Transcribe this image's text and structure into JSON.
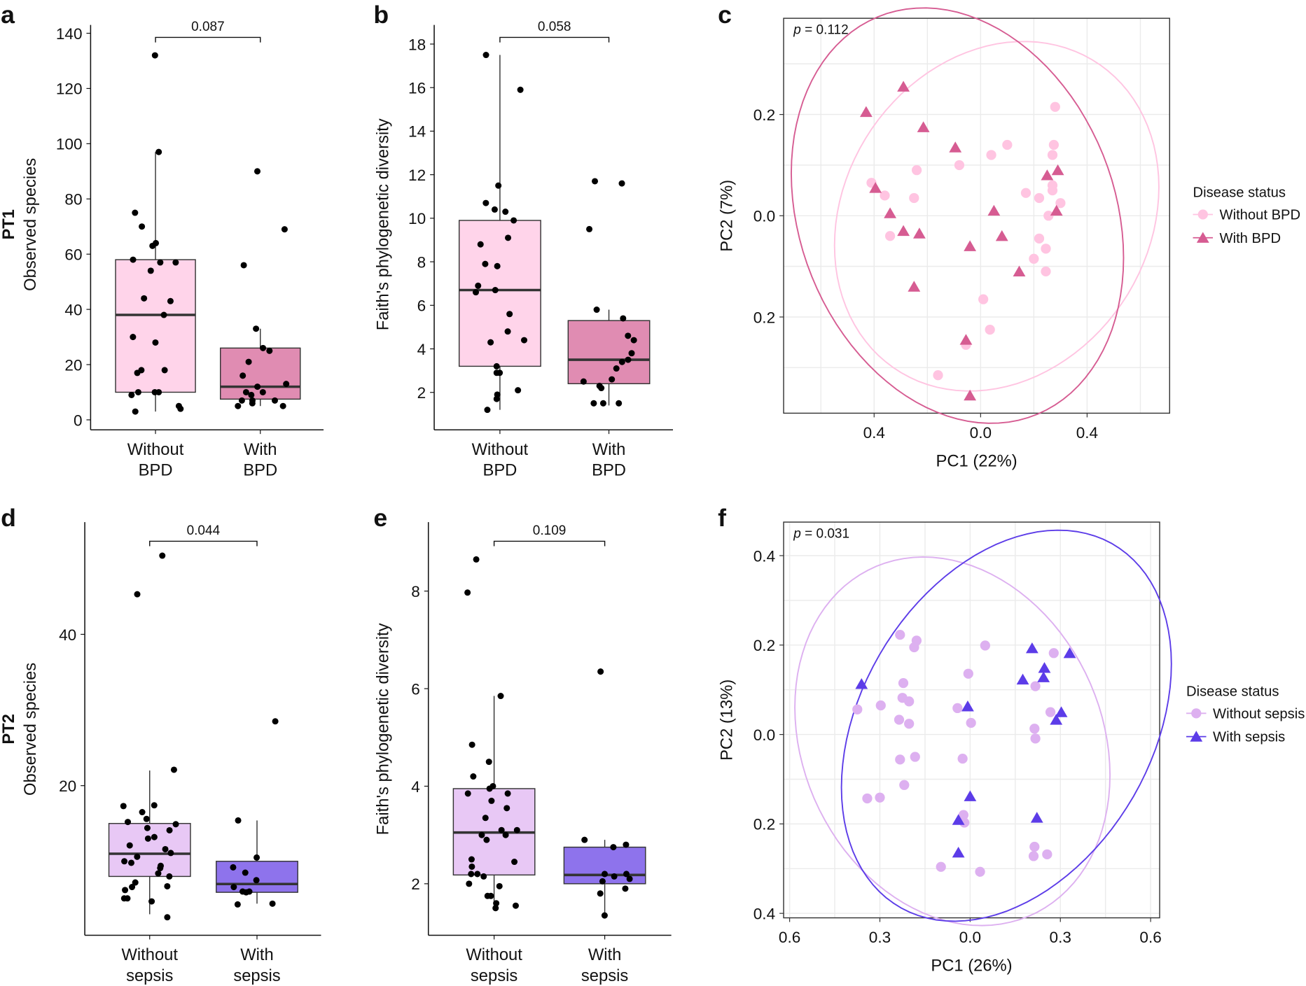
{
  "chart_data": [
    {
      "panel": "a",
      "type": "box",
      "row_label": "PT1",
      "ylabel": "Observed species",
      "ylim": [
        0,
        140
      ],
      "yticks": [
        0,
        20,
        40,
        60,
        80,
        100,
        120,
        140
      ],
      "categories": [
        "Without\nBPD",
        "With\nBPD"
      ],
      "colors": [
        "#ffd4ea",
        "#e08cb2"
      ],
      "comparison_p": "0.087",
      "groups": [
        {
          "box": {
            "min": 3,
            "q1": 10,
            "median": 38,
            "q3": 58,
            "max": 97
          },
          "points": [
            132,
            97,
            75,
            70,
            63,
            64,
            58,
            57,
            57,
            54,
            44,
            43,
            38,
            30,
            28,
            18,
            18,
            17,
            10,
            10,
            10,
            9,
            5,
            4,
            3
          ]
        },
        {
          "box": {
            "min": 5,
            "q1": 7.5,
            "median": 12,
            "q3": 26,
            "max": 33
          },
          "points": [
            90,
            69,
            56,
            33,
            26,
            25,
            21,
            16,
            13,
            12,
            10,
            10,
            9,
            7,
            7,
            7,
            6,
            5,
            5
          ]
        }
      ]
    },
    {
      "panel": "b",
      "type": "box",
      "ylabel": "Faith's phylogenetic diversity",
      "ylim": [
        1,
        19
      ],
      "yticks": [
        2,
        4,
        6,
        8,
        10,
        12,
        14,
        16,
        18
      ],
      "categories": [
        "Without\nBPD",
        "With\nBPD"
      ],
      "colors": [
        "#ffd4ea",
        "#e08cb2"
      ],
      "comparison_p": "0.058",
      "groups": [
        {
          "box": {
            "min": 1.2,
            "q1": 3.2,
            "median": 6.7,
            "q3": 9.9,
            "max": 17.5
          },
          "points": [
            17.5,
            15.9,
            11.5,
            10.7,
            10.3,
            10.4,
            9.9,
            9.1,
            8.8,
            7.9,
            7.8,
            6.9,
            6.6,
            6.7,
            5.6,
            4.8,
            4.4,
            4.3,
            3.2,
            2.9,
            2.9,
            2.1,
            1.9,
            1.7,
            1.2
          ]
        },
        {
          "box": {
            "min": 1.4,
            "q1": 2.4,
            "median": 3.5,
            "q3": 5.3,
            "max": 5.8
          },
          "points": [
            11.7,
            11.6,
            9.5,
            5.8,
            5.4,
            4.6,
            4.4,
            3.8,
            3.5,
            3.4,
            3.1,
            2.6,
            2.5,
            2.3,
            2.2,
            1.5,
            1.5,
            1.5
          ]
        }
      ]
    },
    {
      "panel": "c",
      "type": "scatter",
      "xlabel": "PC1 (22%)",
      "ylabel": "PC2 (7%)",
      "annotation_p_label": "p",
      "annotation_p_value": " = 0.112",
      "xticks": [
        -0.4,
        0.0,
        0.4
      ],
      "xtick_labels": [
        "0.4",
        "0.0",
        "0.4"
      ],
      "yticks": [
        -0.2,
        0.0,
        0.2
      ],
      "ytick_labels": [
        "0.2",
        "0.0",
        "0.2"
      ],
      "xlim": [
        -0.74,
        0.71
      ],
      "ylim": [
        -0.39,
        0.39
      ],
      "grid": true,
      "ellipses": true,
      "legend_position": "right",
      "legend_title": "Disease status",
      "series": [
        {
          "name": "Without BPD",
          "shape": "circle",
          "color": "#ffc4e1",
          "points": [
            [
              0.28,
              0.215
            ],
            [
              0.1,
              0.14
            ],
            [
              0.04,
              0.12
            ],
            [
              0.275,
              0.14
            ],
            [
              0.27,
              0.12
            ],
            [
              -0.08,
              0.1
            ],
            [
              -0.24,
              0.09
            ],
            [
              0.27,
              0.06
            ],
            [
              0.27,
              0.05
            ],
            [
              -0.41,
              0.065
            ],
            [
              -0.36,
              0.04
            ],
            [
              -0.25,
              0.035
            ],
            [
              0.17,
              0.045
            ],
            [
              0.22,
              0.035
            ],
            [
              0.3,
              0.025
            ],
            [
              0.255,
              0.0
            ],
            [
              -0.34,
              -0.04
            ],
            [
              0.22,
              -0.045
            ],
            [
              0.245,
              -0.065
            ],
            [
              0.2,
              -0.085
            ],
            [
              0.245,
              -0.11
            ],
            [
              0.01,
              -0.165
            ],
            [
              0.035,
              -0.225
            ],
            [
              -0.055,
              -0.255
            ],
            [
              -0.16,
              -0.315
            ]
          ]
        },
        {
          "name": "With BPD",
          "shape": "triangle",
          "color": "#d65c92",
          "points": [
            [
              -0.29,
              0.255
            ],
            [
              -0.43,
              0.205
            ],
            [
              -0.215,
              0.175
            ],
            [
              -0.095,
              0.135
            ],
            [
              0.25,
              0.08
            ],
            [
              0.29,
              0.09
            ],
            [
              -0.395,
              0.055
            ],
            [
              -0.34,
              0.005
            ],
            [
              0.05,
              0.01
            ],
            [
              0.285,
              0.01
            ],
            [
              -0.29,
              -0.03
            ],
            [
              -0.23,
              -0.035
            ],
            [
              -0.04,
              -0.06
            ],
            [
              0.08,
              -0.04
            ],
            [
              0.145,
              -0.11
            ],
            [
              -0.25,
              -0.14
            ],
            [
              -0.055,
              -0.245
            ],
            [
              -0.04,
              -0.355
            ]
          ]
        }
      ]
    },
    {
      "panel": "d",
      "type": "box",
      "row_label": "PT2",
      "ylabel": "Observed species",
      "ylim": [
        0,
        55
      ],
      "yticks": [
        20,
        40
      ],
      "categories": [
        "Without\nsepsis",
        "With\nsepsis"
      ],
      "colors": [
        "#e8c8f5",
        "#8e73ec"
      ],
      "comparison_p": "0.044",
      "groups": [
        {
          "box": {
            "min": 3,
            "q1": 8,
            "median": 11,
            "q3": 15,
            "max": 22
          },
          "points": [
            50.4,
            45.3,
            22.1,
            17.3,
            16.5,
            17.4,
            15.6,
            15.2,
            14.9,
            14.4,
            14.1,
            13.2,
            13.0,
            12.1,
            11.6,
            11.1,
            10.6,
            10.0,
            9.8,
            9.4,
            9.1,
            8.4,
            8.0,
            7.2,
            6.7,
            6.6,
            6.2,
            5.1,
            5.1,
            4.7,
            2.6
          ]
        },
        {
          "box": {
            "min": 4.4,
            "q1": 5.9,
            "median": 7.0,
            "q3": 10.0,
            "max": 15.4
          },
          "points": [
            28.5,
            15.4,
            10.5,
            9.2,
            8.5,
            7.5,
            6.6,
            6.0,
            6.0,
            5.9,
            4.4,
            4.3
          ]
        }
      ]
    },
    {
      "panel": "e",
      "type": "box",
      "ylabel": "Faith's phylogenetic diversity",
      "ylim": [
        1.0,
        9.2
      ],
      "yticks": [
        2,
        4,
        6,
        8
      ],
      "categories": [
        "Without\nsepsis",
        "With\nsepsis"
      ],
      "colors": [
        "#e8c8f5",
        "#8e73ec"
      ],
      "comparison_p": "0.109",
      "groups": [
        {
          "box": {
            "min": 1.5,
            "q1": 2.18,
            "median": 3.05,
            "q3": 3.95,
            "max": 5.85
          },
          "points": [
            8.65,
            7.97,
            5.85,
            4.85,
            4.5,
            4.2,
            4.0,
            3.95,
            3.85,
            3.85,
            3.7,
            3.55,
            3.35,
            3.1,
            3.0,
            3.1,
            3.0,
            2.9,
            2.5,
            2.45,
            2.35,
            2.2,
            2.2,
            2.15,
            2.0,
            1.95,
            1.75,
            1.75,
            1.6,
            1.55,
            1.5
          ]
        },
        {
          "box": {
            "min": 1.35,
            "q1": 2.0,
            "median": 2.18,
            "q3": 2.75,
            "max": 2.9
          },
          "points": [
            6.35,
            2.9,
            2.8,
            2.75,
            2.2,
            2.2,
            2.15,
            2.05,
            2.1,
            1.9,
            1.8,
            1.35
          ]
        }
      ]
    },
    {
      "panel": "f",
      "type": "scatter",
      "xlabel": "PC1 (26%)",
      "ylabel": "PC2 (13%)",
      "annotation_p_label": "p",
      "annotation_p_value": " = 0.031",
      "xticks": [
        -0.6,
        -0.3,
        0.0,
        0.3,
        0.6
      ],
      "xtick_labels": [
        "0.6",
        "0.3",
        "0.0",
        "0.3",
        "0.6"
      ],
      "yticks": [
        -0.4,
        -0.2,
        0.0,
        0.2,
        0.4
      ],
      "ytick_labels": [
        "0.4",
        "0.2",
        "0.0",
        "0.2",
        "0.4"
      ],
      "xlim": [
        -0.62,
        0.63
      ],
      "ylim": [
        -0.41,
        0.475
      ],
      "grid": true,
      "ellipses": true,
      "legend_position": "right",
      "legend_title": "Disease status",
      "series": [
        {
          "name": "Without sepsis",
          "shape": "circle",
          "color": "#ddb0f0",
          "points": [
            [
              -0.233,
              0.223
            ],
            [
              -0.178,
              0.21
            ],
            [
              -0.186,
              0.195
            ],
            [
              0.05,
              0.199
            ],
            [
              -0.006,
              0.136
            ],
            [
              -0.222,
              0.115
            ],
            [
              -0.225,
              0.082
            ],
            [
              -0.297,
              0.065
            ],
            [
              -0.203,
              0.074
            ],
            [
              -0.375,
              0.056
            ],
            [
              -0.236,
              0.033
            ],
            [
              -0.203,
              0.024
            ],
            [
              -0.042,
              0.059
            ],
            [
              0.003,
              0.026
            ],
            [
              0.217,
              0.108
            ],
            [
              0.278,
              0.182
            ],
            [
              0.267,
              0.05
            ],
            [
              0.214,
              0.013
            ],
            [
              0.217,
              -0.009
            ],
            [
              -0.233,
              -0.056
            ],
            [
              -0.183,
              -0.05
            ],
            [
              -0.025,
              -0.054
            ],
            [
              -0.219,
              -0.113
            ],
            [
              -0.342,
              -0.143
            ],
            [
              -0.3,
              -0.141
            ],
            [
              -0.022,
              -0.18
            ],
            [
              -0.019,
              -0.197
            ],
            [
              0.214,
              -0.251
            ],
            [
              0.211,
              -0.272
            ],
            [
              0.256,
              -0.268
            ],
            [
              -0.097,
              -0.296
            ],
            [
              0.033,
              -0.307
            ]
          ]
        },
        {
          "name": "With sepsis",
          "shape": "triangle",
          "color": "#5c3ce8",
          "points": [
            [
              0.206,
              0.193
            ],
            [
              0.331,
              0.182
            ],
            [
              0.247,
              0.149
            ],
            [
              0.244,
              0.128
            ],
            [
              0.175,
              0.123
            ],
            [
              -0.361,
              0.113
            ],
            [
              -0.008,
              0.063
            ],
            [
              0.303,
              0.05
            ],
            [
              0.286,
              0.033
            ],
            [
              0.0,
              -0.138
            ],
            [
              -0.039,
              -0.191
            ],
            [
              0.222,
              -0.186
            ],
            [
              -0.039,
              -0.264
            ]
          ]
        }
      ]
    }
  ]
}
